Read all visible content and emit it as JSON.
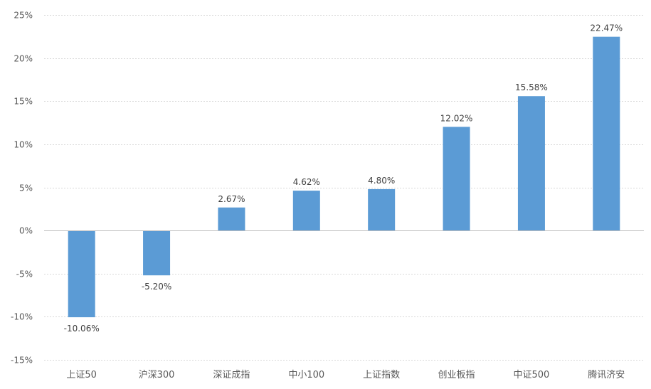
{
  "chart_data": {
    "type": "bar",
    "title": "",
    "xlabel": "",
    "ylabel": "",
    "categories": [
      "上证50",
      "沪深300",
      "深证成指",
      "中小100",
      "上证指数",
      "创业板指",
      "中证500",
      "腾讯济安"
    ],
    "values": [
      -10.06,
      -5.2,
      2.67,
      4.62,
      4.8,
      12.02,
      15.58,
      22.47
    ],
    "data_labels": [
      "-10.06%",
      "-5.20%",
      "2.67%",
      "4.62%",
      "4.80%",
      "12.02%",
      "15.58%",
      "22.47%"
    ],
    "ylim": [
      -15,
      25
    ],
    "yticks": [
      25,
      20,
      15,
      10,
      5,
      0,
      -5,
      -10,
      -15
    ],
    "ytick_labels": [
      "25%",
      "20%",
      "15%",
      "10%",
      "5%",
      "0%",
      "-5%",
      "-10%",
      "-15%"
    ],
    "grid": true,
    "legend": "none",
    "bar_color": "#5b9bd5"
  }
}
